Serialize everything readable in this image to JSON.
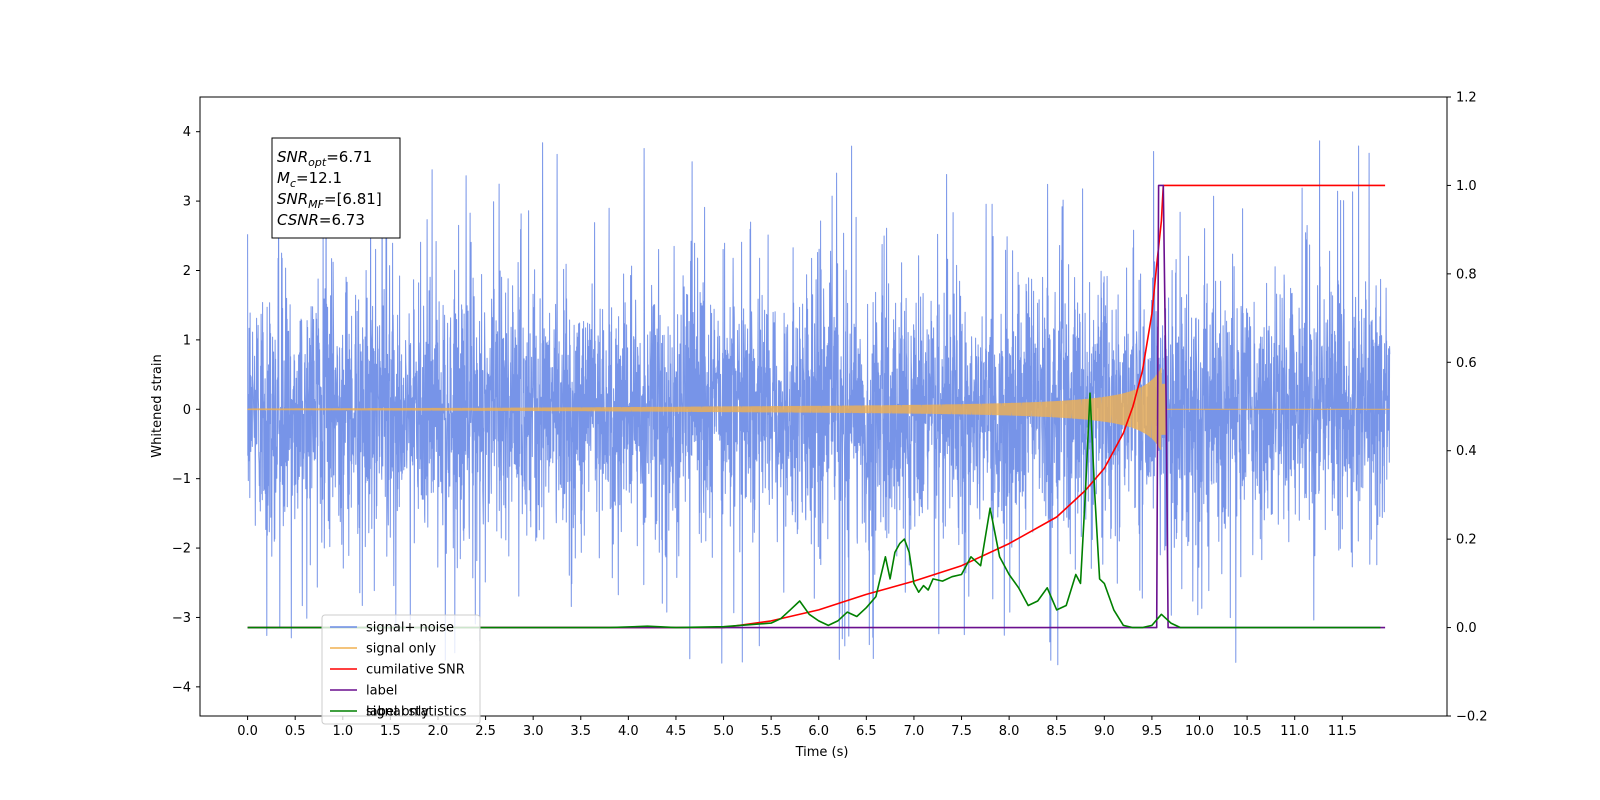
{
  "chart_data": {
    "type": "line",
    "xlabel": "Time (s)",
    "ylabel": "Whitened strain",
    "xlim": [
      -0.5,
      12.6
    ],
    "ylim_left": [
      -4.42,
      4.5
    ],
    "ylim_right": [
      -0.2,
      1.2
    ],
    "x_ticks": [
      "0.0",
      "0.5",
      "1.0",
      "1.5",
      "2.0",
      "2.5",
      "3.0",
      "3.5",
      "4.0",
      "4.5",
      "5.0",
      "5.5",
      "6.0",
      "6.5",
      "7.0",
      "7.5",
      "8.0",
      "8.5",
      "9.0",
      "9.5",
      "10.0",
      "10.5",
      "11.0",
      "11.5"
    ],
    "y_ticks_left": [
      "4",
      "3",
      "2",
      "1",
      "0",
      "−1",
      "−2",
      "−3",
      "−4"
    ],
    "y_ticks_right": [
      "1.2",
      "1.0",
      "0.8",
      "0.6",
      "0.4",
      "0.2",
      "0.0",
      "−0.2"
    ],
    "legend_placement": "lower-left",
    "annotation": {
      "lines": [
        {
          "sym": "SNR",
          "sub": "opt",
          "val": "=6.71"
        },
        {
          "sym": "M",
          "sub": "c",
          "val": "=12.1"
        },
        {
          "sym": "SNR",
          "sub": "MF",
          "val": "=[6.81]"
        },
        {
          "sym": "CSNR",
          "sub": "",
          "val": "=6.73"
        }
      ]
    },
    "series": [
      {
        "name": "signal+ noise",
        "color": "#6b8be6",
        "axis": "left",
        "kind": "noise",
        "x_range": [
          0,
          12.0
        ],
        "envelope": 2.0,
        "peak_max": 4.1,
        "peak_min": -4.0
      },
      {
        "name": "signal only",
        "color": "#f0b050",
        "axis": "left",
        "kind": "chirp",
        "x_range": [
          0,
          12.0
        ],
        "merger_time": 9.6,
        "max_amplitude": 0.6
      },
      {
        "name": "cumilative SNR",
        "color": "#ff0000",
        "axis": "right",
        "x": [
          0,
          5.0,
          5.5,
          6.0,
          6.5,
          7.0,
          7.5,
          8.0,
          8.5,
          8.8,
          9.0,
          9.2,
          9.3,
          9.4,
          9.5,
          9.55,
          9.6,
          9.62,
          10.0,
          11.0,
          11.5,
          11.95
        ],
        "y": [
          0,
          0,
          0.015,
          0.04,
          0.075,
          0.105,
          0.14,
          0.19,
          0.25,
          0.31,
          0.36,
          0.44,
          0.5,
          0.58,
          0.71,
          0.82,
          0.92,
          1.0,
          1.0,
          1.0,
          1.0,
          1.0
        ]
      },
      {
        "name": "label",
        "color": "#6a0f8e",
        "axis": "right",
        "x": [
          0,
          9.5,
          9.55,
          9.57,
          9.62,
          9.65,
          9.67,
          11.95
        ],
        "y": [
          0,
          0,
          0,
          1.0,
          1.0,
          0.5,
          0,
          0
        ]
      },
      {
        "name": "label only",
        "color": "#808080",
        "axis": "right",
        "hidden": true,
        "x": [],
        "y": []
      },
      {
        "name": "signal statistics",
        "color": "#008000",
        "axis": "right",
        "x": [
          0,
          3.8,
          4.2,
          4.5,
          5.0,
          5.5,
          5.6,
          5.7,
          5.8,
          5.9,
          6.0,
          6.1,
          6.2,
          6.3,
          6.4,
          6.5,
          6.6,
          6.7,
          6.75,
          6.8,
          6.85,
          6.9,
          6.95,
          7.0,
          7.05,
          7.1,
          7.15,
          7.2,
          7.3,
          7.4,
          7.5,
          7.6,
          7.7,
          7.8,
          7.9,
          8.0,
          8.1,
          8.2,
          8.3,
          8.4,
          8.5,
          8.6,
          8.7,
          8.75,
          8.8,
          8.85,
          8.9,
          8.95,
          9.0,
          9.1,
          9.2,
          9.3,
          9.4,
          9.5,
          9.6,
          9.7,
          9.8,
          9.9,
          10.0,
          11.0,
          11.9
        ],
        "y": [
          0,
          0,
          0.003,
          0,
          0.002,
          0.01,
          0.02,
          0.04,
          0.06,
          0.03,
          0.015,
          0.005,
          0.015,
          0.035,
          0.025,
          0.045,
          0.07,
          0.16,
          0.11,
          0.17,
          0.19,
          0.2,
          0.17,
          0.1,
          0.08,
          0.095,
          0.085,
          0.11,
          0.105,
          0.115,
          0.12,
          0.16,
          0.14,
          0.27,
          0.16,
          0.12,
          0.09,
          0.05,
          0.06,
          0.09,
          0.04,
          0.05,
          0.12,
          0.1,
          0.3,
          0.53,
          0.3,
          0.11,
          0.1,
          0.04,
          0.005,
          0,
          0,
          0.005,
          0.03,
          0.01,
          0,
          0,
          0,
          0,
          0
        ]
      }
    ]
  }
}
